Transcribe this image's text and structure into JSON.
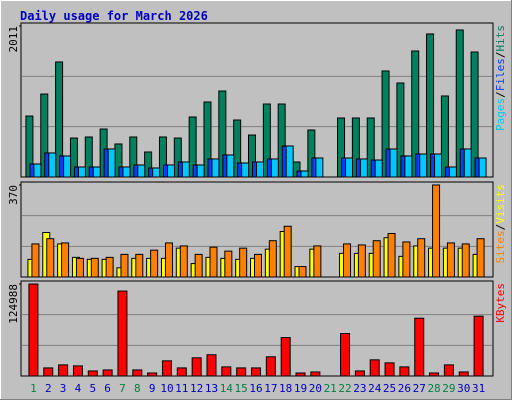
{
  "chart_data": [
    {
      "type": "bar",
      "title": "Daily usage for March 2026",
      "ylim": [
        0,
        2011
      ],
      "yticks": [
        2011
      ],
      "legend_separator": "/",
      "series": [
        {
          "name": "Hits",
          "color": "#00805c",
          "values": [
            812,
            1105,
            1532,
            519,
            533,
            639,
            440,
            533,
            333,
            533,
            519,
            799,
            999,
            1145,
            759,
            559,
            972,
            972,
            200,
            626,
            0,
            786,
            786,
            786,
            1412,
            1252,
            1678,
            1905,
            1079,
            1958,
            1665
          ]
        },
        {
          "name": "Files",
          "color": "#0040ff",
          "values": [
            173,
            320,
            280,
            133,
            133,
            373,
            133,
            160,
            120,
            160,
            200,
            160,
            240,
            293,
            186,
            200,
            240,
            413,
            80,
            253,
            0,
            253,
            240,
            226,
            373,
            280,
            306,
            306,
            133,
            373,
            253
          ]
        },
        {
          "name": "Pages",
          "color": "#00c8ff",
          "values": [
            173,
            320,
            280,
            133,
            133,
            373,
            133,
            160,
            120,
            160,
            200,
            160,
            240,
            293,
            186,
            200,
            240,
            413,
            80,
            253,
            0,
            253,
            240,
            226,
            373,
            280,
            306,
            306,
            133,
            373,
            253
          ]
        }
      ]
    },
    {
      "type": "bar",
      "ylim": [
        0,
        370
      ],
      "yticks": [
        370
      ],
      "legend_separator": "/",
      "series": [
        {
          "name": "Visits",
          "color": "#ffff00",
          "values": [
            71,
            179,
            133,
            79,
            71,
            71,
            37,
            75,
            75,
            75,
            116,
            54,
            79,
            75,
            71,
            75,
            112,
            183,
            42,
            112,
            0,
            95,
            95,
            95,
            158,
            83,
            125,
            116,
            116,
            116,
            91
          ]
        },
        {
          "name": "Sites",
          "color": "#ff8000",
          "values": [
            133,
            154,
            137,
            75,
            75,
            79,
            91,
            91,
            108,
            137,
            125,
            91,
            120,
            104,
            116,
            91,
            146,
            204,
            42,
            125,
            0,
            133,
            129,
            146,
            175,
            141,
            154,
            370,
            137,
            133,
            154
          ]
        }
      ]
    },
    {
      "type": "bar",
      "ylim": [
        0,
        124988
      ],
      "yticks": [
        124988
      ],
      "categories": [
        "1",
        "2",
        "3",
        "4",
        "5",
        "6",
        "7",
        "8",
        "9",
        "10",
        "11",
        "12",
        "13",
        "14",
        "15",
        "16",
        "17",
        "18",
        "19",
        "20",
        "21",
        "22",
        "23",
        "24",
        "25",
        "26",
        "27",
        "28",
        "29",
        "30",
        "31"
      ],
      "category_colors": [
        "#008040",
        "#0000c0",
        "#0000c0",
        "#0000c0",
        "#0000c0",
        "#0000c0",
        "#008040",
        "#008040",
        "#0000c0",
        "#0000c0",
        "#0000c0",
        "#0000c0",
        "#0000c0",
        "#008040",
        "#008040",
        "#0000c0",
        "#0000c0",
        "#0000c0",
        "#0000c0",
        "#0000c0",
        "#008040",
        "#008040",
        "#0000c0",
        "#0000c0",
        "#0000c0",
        "#0000c0",
        "#0000c0",
        "#008040",
        "#008040",
        "#0000c0",
        "#0000c0"
      ],
      "series": [
        {
          "name": "KBytes",
          "color": "#ff0000",
          "values": [
            124988,
            10988,
            15108,
            13735,
            6867,
            8241,
            115374,
            8241,
            4120,
            20603,
            10988,
            24724,
            28844,
            12362,
            10988,
            10988,
            26097,
            52192,
            4120,
            5494,
            0,
            57686,
            6867,
            21976,
            17855,
            12362,
            78506,
            4120,
            15108,
            5494,
            81253
          ]
        }
      ]
    }
  ]
}
